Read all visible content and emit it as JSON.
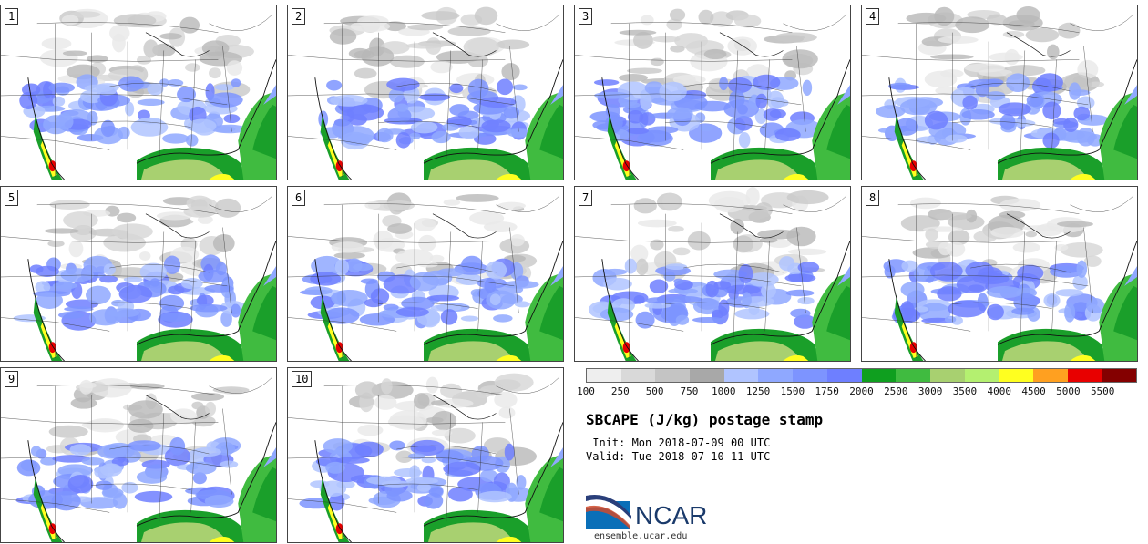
{
  "panels": [
    {
      "label": "1"
    },
    {
      "label": "2"
    },
    {
      "label": "3"
    },
    {
      "label": "4"
    },
    {
      "label": "5"
    },
    {
      "label": "6"
    },
    {
      "label": "7"
    },
    {
      "label": "8"
    },
    {
      "label": "9"
    },
    {
      "label": "10"
    }
  ],
  "colorbar": {
    "colors": [
      "#eeeeee",
      "#d9d9d9",
      "#c4c4c4",
      "#a8a8a8",
      "#b0c4ff",
      "#8fa8ff",
      "#7d94ff",
      "#6e7fff",
      "#0f9f1f",
      "#40bb40",
      "#a8d070",
      "#b4f070",
      "#ffff20",
      "#ffa020",
      "#e80000",
      "#840000"
    ],
    "tick_labels": [
      "100",
      "250",
      "500",
      "750",
      "1000",
      "1250",
      "1500",
      "1750",
      "2000",
      "2500",
      "3000",
      "3500",
      "4000",
      "4500",
      "5000",
      "5500"
    ]
  },
  "title": "SBCAPE (J/kg) postage stamp",
  "init_text": " Init: Mon 2018-07-09 00 UTC",
  "valid_text": "Valid: Tue 2018-07-10 11 UTC",
  "logo": {
    "text": "NCAR",
    "url": "ensemble.ucar.edu"
  }
}
